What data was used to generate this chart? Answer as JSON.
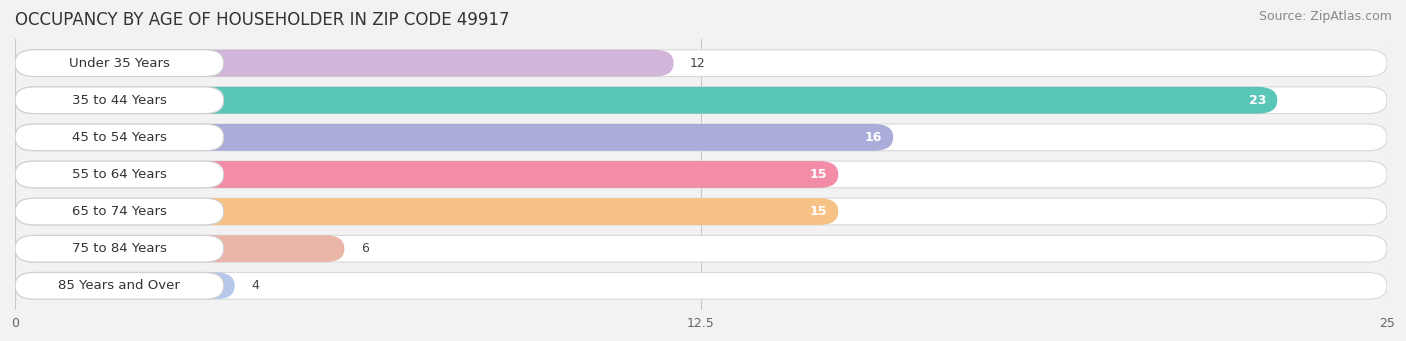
{
  "title": "OCCUPANCY BY AGE OF HOUSEHOLDER IN ZIP CODE 49917",
  "source": "Source: ZipAtlas.com",
  "categories": [
    "Under 35 Years",
    "35 to 44 Years",
    "45 to 54 Years",
    "55 to 64 Years",
    "65 to 74 Years",
    "75 to 84 Years",
    "85 Years and Over"
  ],
  "values": [
    12,
    23,
    16,
    15,
    15,
    6,
    4
  ],
  "bar_colors": [
    "#c9aad4",
    "#3dbcac",
    "#9b9fd4",
    "#f07898",
    "#f5b870",
    "#e8a898",
    "#a8bfe8"
  ],
  "xlim": [
    0,
    25
  ],
  "xticks": [
    0,
    12.5,
    25
  ],
  "background_color": "#f2f2f2",
  "bar_bg_color": "#ffffff",
  "row_bg_color": "#f2f2f2",
  "label_box_color": "#ffffff",
  "title_fontsize": 12,
  "source_fontsize": 9,
  "label_fontsize": 9.5,
  "value_fontsize": 9
}
